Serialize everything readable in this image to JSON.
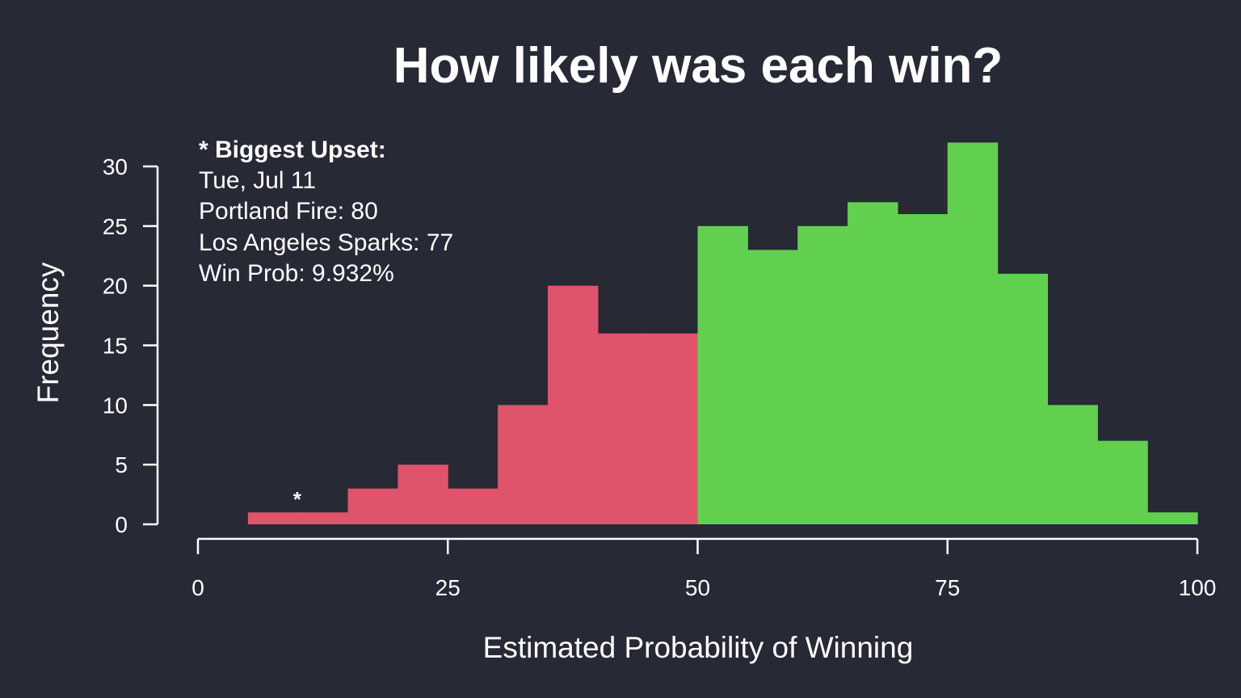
{
  "chart_data": {
    "type": "bar",
    "title": "How likely was each win?",
    "xlabel": "Estimated Probability of Winning",
    "ylabel": "Frequency",
    "xlim": [
      0,
      100
    ],
    "ylim": [
      0,
      30
    ],
    "x_ticks": [
      "0",
      "25",
      "50",
      "75",
      "100"
    ],
    "y_ticks": [
      "0",
      "5",
      "10",
      "15",
      "20",
      "25",
      "30"
    ],
    "bin_width": 5,
    "bin_starts": [
      5,
      10,
      15,
      20,
      25,
      30,
      35,
      40,
      45,
      50,
      55,
      60,
      65,
      70,
      75,
      80,
      85,
      90,
      95
    ],
    "values": [
      1,
      1,
      3,
      5,
      3,
      10,
      20,
      16,
      16,
      25,
      23,
      25,
      27,
      26,
      32,
      21,
      10,
      7,
      1
    ],
    "colors": {
      "below_50": "#df536b",
      "above_50": "#61d04f"
    },
    "grid": false,
    "annotation": {
      "heading": "* Biggest Upset:",
      "lines": [
        "Tue, Jul 11",
        "Portland Fire: 80",
        "Los Angeles Sparks: 77",
        "Win Prob: 9.932%"
      ],
      "marker_symbol": "*",
      "marker_x": 9.932
    }
  }
}
